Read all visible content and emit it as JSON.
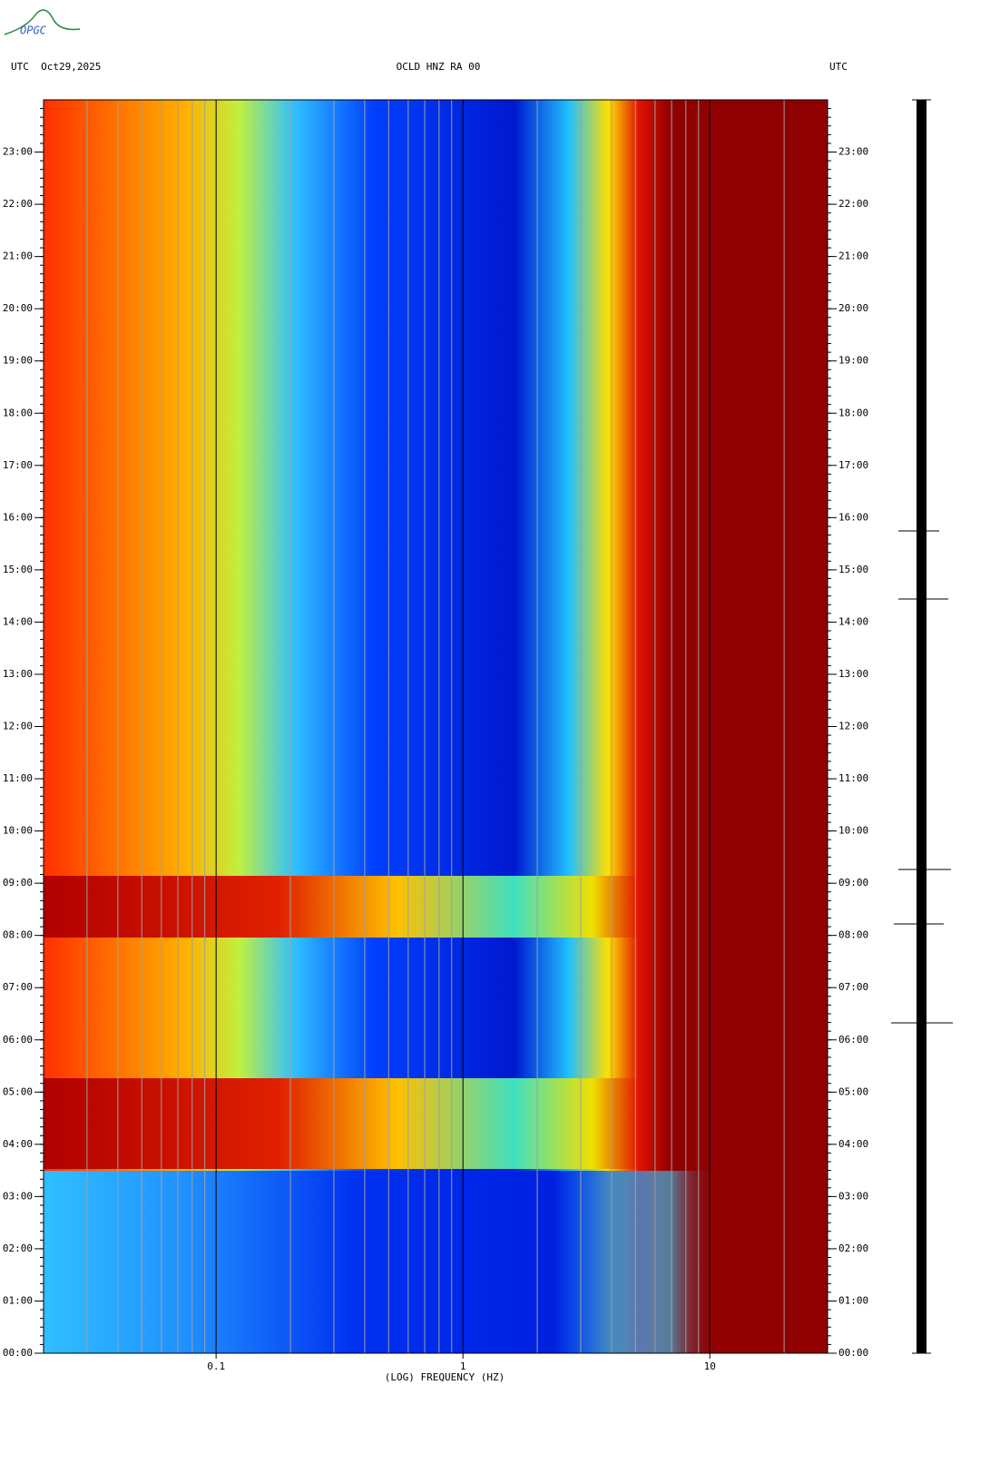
{
  "chart_data": {
    "type": "spectrogram",
    "logo": "OPGC",
    "header_left": "UTC  Oct29,2025",
    "title": "OCLD HNZ RA 00",
    "header_right": "UTC",
    "x_label": "(LOG) FREQUENCY (HZ)",
    "x_log": true,
    "xlim": [
      0.02,
      30
    ],
    "xticks": [
      0.1,
      1,
      10
    ],
    "x_minor_grid": [
      0.02,
      0.03,
      0.04,
      0.05,
      0.06,
      0.07,
      0.08,
      0.09,
      0.2,
      0.3,
      0.4,
      0.5,
      0.6,
      0.7,
      0.8,
      0.9,
      2,
      3,
      4,
      5,
      6,
      7,
      8,
      9,
      20
    ],
    "ylim": [
      0,
      24
    ],
    "yticks": [
      {
        "value": 0,
        "label": "00:00"
      },
      {
        "value": 1,
        "label": "01:00"
      },
      {
        "value": 2,
        "label": "02:00"
      },
      {
        "value": 3,
        "label": "03:00"
      },
      {
        "value": 4,
        "label": "04:00"
      },
      {
        "value": 5,
        "label": "05:00"
      },
      {
        "value": 6,
        "label": "06:00"
      },
      {
        "value": 7,
        "label": "07:00"
      },
      {
        "value": 8,
        "label": "08:00"
      },
      {
        "value": 9,
        "label": "09:00"
      },
      {
        "value": 10,
        "label": "10:00"
      },
      {
        "value": 11,
        "label": "11:00"
      },
      {
        "value": 12,
        "label": "12:00"
      },
      {
        "value": 13,
        "label": "13:00"
      },
      {
        "value": 14,
        "label": "14:00"
      },
      {
        "value": 15,
        "label": "15:00"
      },
      {
        "value": 16,
        "label": "16:00"
      },
      {
        "value": 17,
        "label": "17:00"
      },
      {
        "value": 18,
        "label": "18:00"
      },
      {
        "value": 19,
        "label": "19:00"
      },
      {
        "value": 20,
        "label": "20:00"
      },
      {
        "value": 21,
        "label": "21:00"
      },
      {
        "value": 22,
        "label": "22:00"
      },
      {
        "value": 23,
        "label": "23:00"
      }
    ]
  }
}
